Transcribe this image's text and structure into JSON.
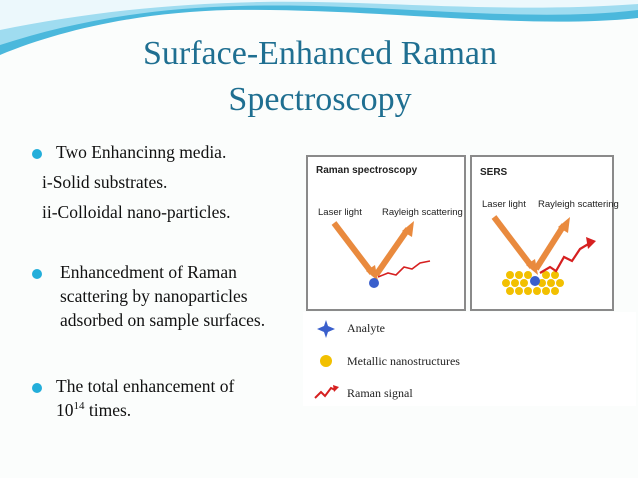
{
  "slide": {
    "title_line1": "Surface-Enhanced Raman",
    "title_line2": "Spectroscopy"
  },
  "bullets": {
    "b1": "Two Enhancinng media.",
    "b1_sub1": "i-Solid substrates.",
    "b1_sub2": "ii-Colloidal nano-particles.",
    "b2_line1": "Enhancedment of Raman",
    "b2_line2": "scattering by nanoparticles",
    "b2_line3": "adsorbed on sample surfaces.",
    "b3_line1": "The total enhancement of",
    "b3_base": "10",
    "b3_exp": "14",
    "b3_tail": " times."
  },
  "figure": {
    "panel_left_title": "Raman spectroscopy",
    "panel_right_title": "SERS",
    "laser_label": "Laser light",
    "rayleigh_label": "Rayleigh scattering",
    "legend": {
      "analyte": "Analyte",
      "metallic": "Metallic nanostructures",
      "raman": "Raman signal"
    }
  },
  "colors": {
    "title": "#1f6f91",
    "bullet": "#23aeda",
    "laser": "#e98a3e",
    "analyte": "#3a5fcc",
    "nano": "#f2c000",
    "signal": "#d62020"
  }
}
